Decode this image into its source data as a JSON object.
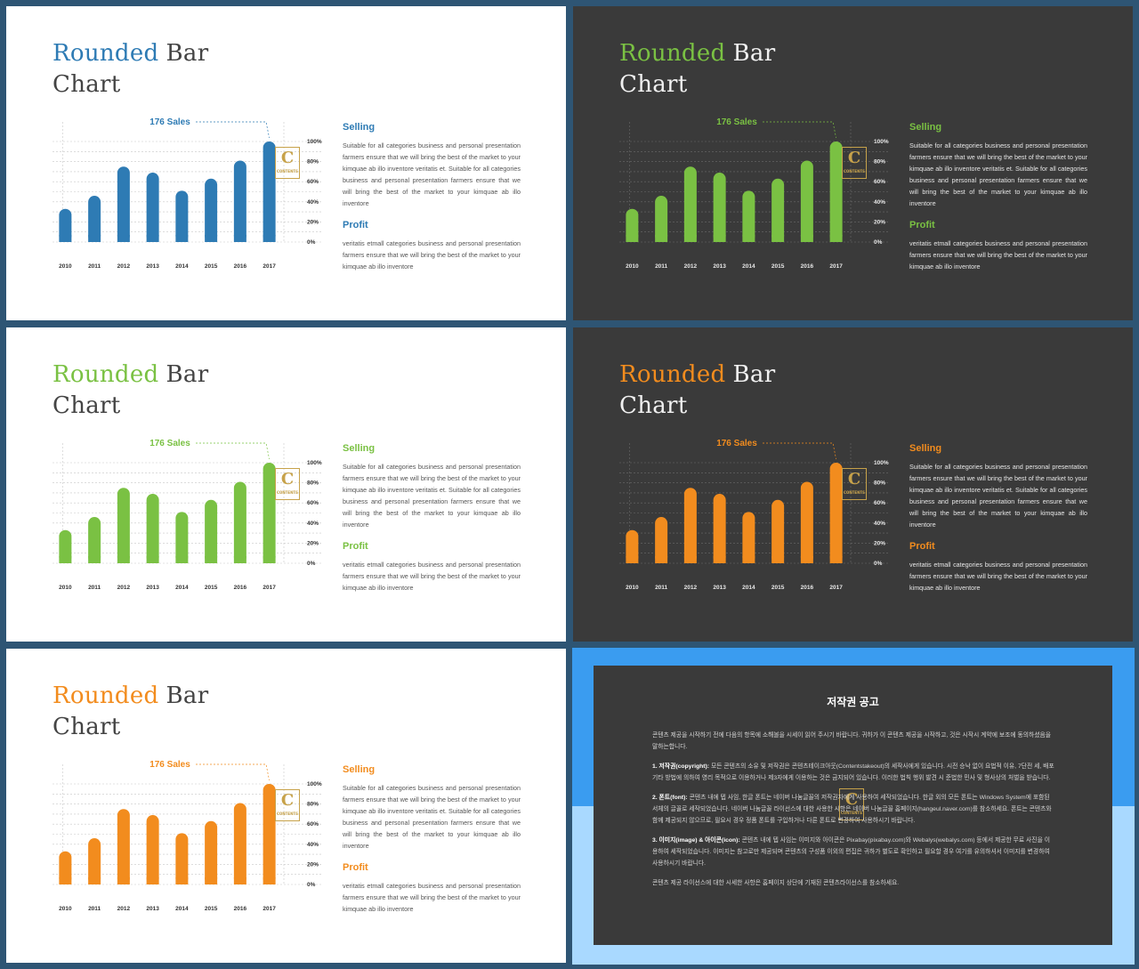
{
  "slides": [
    {
      "theme": "light",
      "accent": "#2e7bb4",
      "title": {
        "w1": "Rounded",
        "w2": "Bar",
        "w3": "Chart"
      }
    },
    {
      "theme": "dark",
      "accent": "#7ac143",
      "title": {
        "w1": "Rounded",
        "w2": "Bar",
        "w3": "Chart"
      }
    },
    {
      "theme": "light",
      "accent": "#7ac143",
      "title": {
        "w1": "Rounded",
        "w2": "Bar",
        "w3": "Chart"
      }
    },
    {
      "theme": "dark",
      "accent": "#f28c1e",
      "title": {
        "w1": "Rounded",
        "w2": "Bar",
        "w3": "Chart"
      }
    },
    {
      "theme": "light",
      "accent": "#f28c1e",
      "title": {
        "w1": "Rounded",
        "w2": "Bar",
        "w3": "Chart"
      }
    }
  ],
  "chart_data": {
    "type": "bar",
    "categories": [
      "2010",
      "2011",
      "2012",
      "2013",
      "2014",
      "2015",
      "2016",
      "2017"
    ],
    "values": [
      33,
      46,
      75,
      69,
      51,
      63,
      81,
      100
    ],
    "ytick_labels": [
      "100%",
      "80%",
      "60%",
      "40%",
      "20%",
      "0%"
    ],
    "ylim": [
      0,
      100
    ],
    "annotation": "176 Sales",
    "grid": true
  },
  "text": {
    "selling_head": "Selling",
    "selling_body": "Suitable for all categories business and personal presentation farmers ensure that we will bring the best of the market to your kimquae ab illo inventore veritatis et. Suitable for all categories business and personal presentation farmers ensure that we will bring the best of the market to your kimquae ab illo inventore",
    "profit_head": "Profit",
    "profit_body": "veritatis etmall categories business and personal presentation farmers ensure that we will bring the best of the market to your kimquae ab illo inventore"
  },
  "logo": {
    "letter": "C",
    "caption": "CONTENTS"
  },
  "notice": {
    "title": "저작권 공고",
    "intro": "콘텐츠 제공을 시작하기 전에 다음의 항목에 소해볼을 시세이 읽어 주시기 바랍니다. 귀하가 이 콘텐츠 제공을 시작하고, 것은 시작시 계약에 보조에 동의하셨음을 말하는합니다.",
    "items": [
      {
        "label": "1. 저작권(copyright):",
        "text": "모든 콘텐츠의 소유 및 저작권은 콘텐츠테이크아웃(Contentstakeout)의 세작사에게 있습니다. 시전 승낙 없이 요법적 이유, 7단전 세, 배포 기타 방법에 의하여 영리 목적으로 이용하거나 제3자에게 이용하는 것은 금지되어 있습니다. 이러한 법칙 행위 발견 시 준법한 민사 및 형사상의 처벌을 받습니다."
      },
      {
        "label": "2. 폰트(font):",
        "text": "콘텐츠 내에 텝 사임, 한글 폰트는 네이버 나눔글꼴의 저작권자에게 사용하여 세작되었습니다. 한글 외의 모든 폰트는 Windows System에 포함된 서체의 글꼴로 세작되었습니다. 네이버 나눔글꼴 라이선스에 대한 사용한 시항은 네이버 나눔글꼴 홈페이지(hangeul.naver.com)를 참소하세요. 폰트는 콘텐츠와 함께 제공되지 않으므로, 필요시 경우 정품 폰트를 구입하거나 다른 폰트로 변경하여 사용하시기 바랍니다."
      },
      {
        "label": "3. 이미지(image) & 아이콘(icon):",
        "text": "콘텐츠 내에 텝 사임는 이미지와 아이콘은 Pixabay(pixabay.com)와 Webalys(webalys.com) 등에서 제공한 무료 사진을 이용하여 세작되었습니다. 이미지는 참고로만 제공되며 콘텐츠의 구성품 이외의 편집은 귀하가 별도로 확인하고 필요할 경우 여기를 유의하셔서 이미지를 변경하여 사용하시기 바랍니다."
      }
    ],
    "outro": "콘텐츠 제공 라이선스에 대한 시세한 사항은 홈페이지 상단에 기재된 콘텐츠라이선스를 참소하세요."
  }
}
